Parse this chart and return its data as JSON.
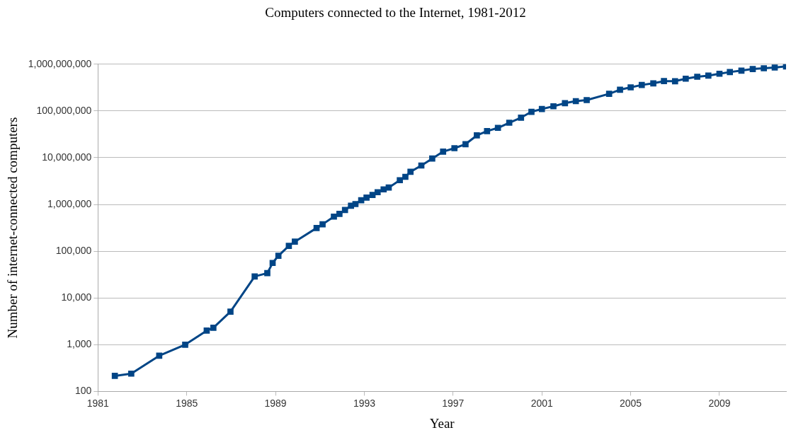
{
  "chart_data": {
    "type": "line",
    "title": "Computers connected to the Internet, 1981-2012",
    "xlabel": "Year",
    "ylabel": "Number of internet-connected computers",
    "x": [
      1981.76,
      1982.5,
      1983.76,
      1984.93,
      1985.9,
      1986.2,
      1986.97,
      1988.06,
      1988.63,
      1988.87,
      1989.13,
      1989.6,
      1989.87,
      1990.85,
      1991.12,
      1991.63,
      1991.88,
      1992.13,
      1992.4,
      1992.6,
      1992.86,
      1993.1,
      1993.37,
      1993.6,
      1993.87,
      1994.1,
      1994.6,
      1994.85,
      1995.08,
      1995.57,
      1996.06,
      1996.55,
      1997.06,
      1997.56,
      1998.07,
      1998.53,
      1999.02,
      1999.53,
      2000.06,
      2000.53,
      2001.0,
      2001.52,
      2002.04,
      2002.53,
      2003.02,
      2004.03,
      2004.52,
      2005.0,
      2005.5,
      2006.02,
      2006.5,
      2007.0,
      2007.48,
      2008.0,
      2008.5,
      2009.0,
      2009.47,
      2009.99,
      2010.5,
      2011.0,
      2011.49,
      2012.0
    ],
    "series": [
      {
        "color": "#004586",
        "values": [
          215,
          240,
          580,
          1000,
          2000,
          2300,
          5100,
          28800,
          34000,
          56000,
          80000,
          130000,
          160000,
          313000,
          376000,
          550000,
          630000,
          760000,
          940000,
          1020000,
          1230000,
          1400000,
          1600000,
          1830000,
          2100000,
          2300000,
          3300000,
          3900000,
          5000000,
          6800000,
          9600000,
          13500000,
          16000000,
          19500000,
          30000000,
          37000000,
          43500000,
          56000000,
          72000000,
          96000000,
          110000000,
          126000000,
          147000000,
          162000000,
          171000000,
          233000000,
          285000000,
          320000000,
          360000000,
          390000000,
          435000000,
          433000000,
          490000000,
          540000000,
          570000000,
          625000000,
          680000000,
          730000000,
          790000000,
          820000000,
          850000000,
          900000000
        ]
      }
    ],
    "xlim": [
      1981,
      2012
    ],
    "xticks": [
      1981,
      1985,
      1989,
      1993,
      1997,
      2001,
      2005,
      2009
    ],
    "ylim": [
      100,
      1000000000
    ],
    "yticks": [
      {
        "value": 100,
        "label": "100"
      },
      {
        "value": 1000,
        "label": "1,000"
      },
      {
        "value": 10000,
        "label": "10,000"
      },
      {
        "value": 100000,
        "label": "100,000"
      },
      {
        "value": 1000000,
        "label": "1,000,000"
      },
      {
        "value": 10000000,
        "label": "10,000,000"
      },
      {
        "value": 100000000,
        "label": "100,000,000"
      },
      {
        "value": 1000000000,
        "label": "1,000,000,000"
      }
    ],
    "log": true,
    "grid": "y",
    "legend": false,
    "marker": "square",
    "line_style": "solid"
  }
}
